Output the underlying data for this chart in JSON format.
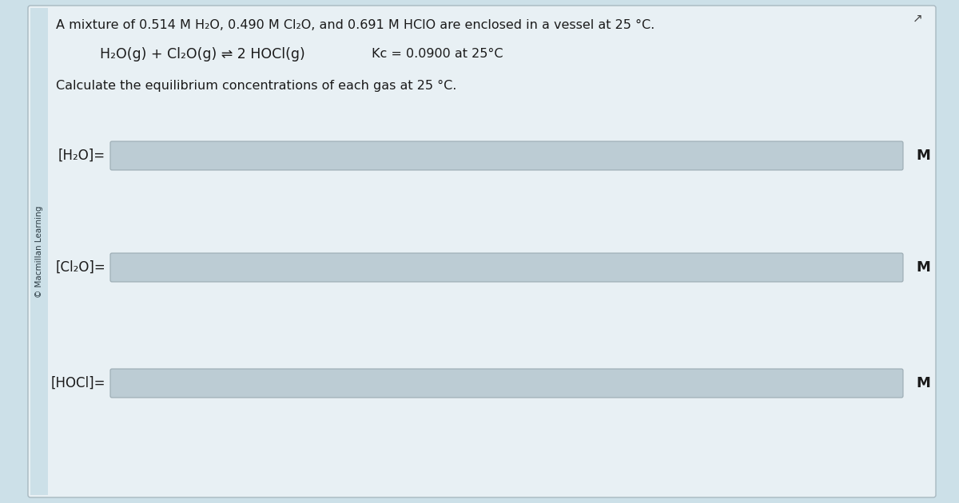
{
  "bg_color": "#cce0e8",
  "panel_bg": "#e8f0f4",
  "input_box_color": "#bcccd4",
  "input_box_border": "#9aaab2",
  "text_color": "#1a1a1a",
  "sidebar_text": "© Macmillan Learning",
  "title_line": "A mixture of 0.514 M H₂O, 0.490 M Cl₂O, and 0.691 M HClO are enclosed in a vessel at 25 °C.",
  "equation_left": "H₂O(g) + Cl₂O(g) ⇌ 2 HOCl(g)",
  "kc_text": "Kᴄ = 0.0900 at 25°C",
  "instruction_line": "Calculate the equilibrium concentrations of each gas at 25 °C.",
  "label1": "[H₂O]=",
  "label2": "[Cl₂O]=",
  "label3": "[HOCl]=",
  "unit": "M",
  "outer_border_color": "#a8b8c0",
  "corner_icon": "↗"
}
